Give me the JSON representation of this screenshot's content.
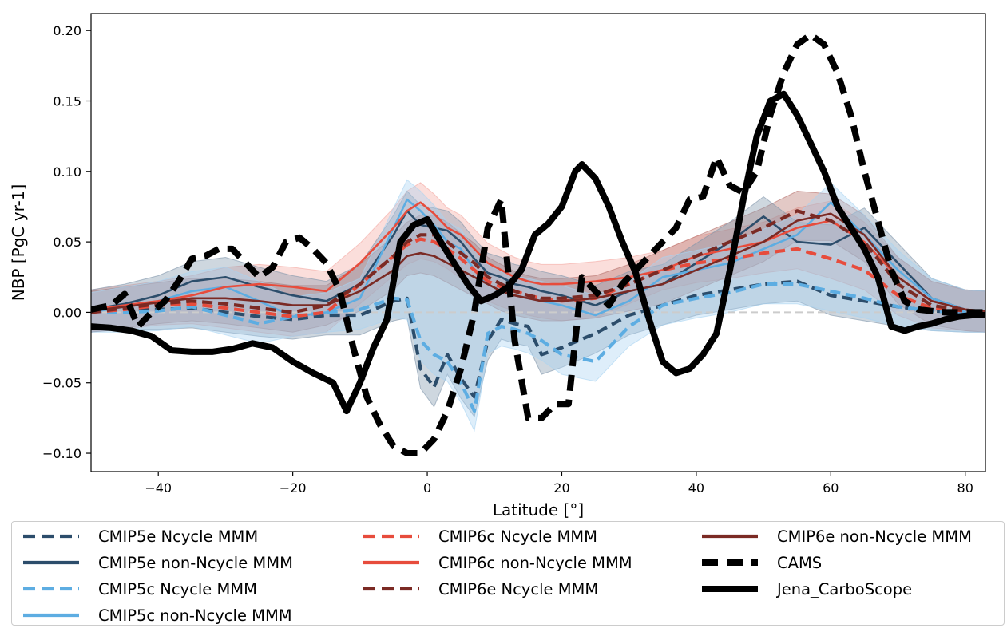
{
  "chart_data": {
    "type": "line",
    "title": "",
    "xlabel": "Latitude [°]",
    "ylabel": "NBP [PgC yr-1]",
    "xlim": [
      -50,
      83
    ],
    "ylim": [
      -0.113,
      0.212
    ],
    "xticks": [
      -40,
      -20,
      0,
      20,
      40,
      60,
      80
    ],
    "xtick_labels": [
      "−40",
      "−20",
      "0",
      "20",
      "40",
      "60",
      "80"
    ],
    "yticks": [
      -0.1,
      -0.05,
      0.0,
      0.05,
      0.1,
      0.15,
      0.2
    ],
    "ytick_labels": [
      "−0.10",
      "−0.05",
      "0.00",
      "0.05",
      "0.10",
      "0.15",
      "0.20"
    ],
    "grid": false,
    "zero_line": true,
    "legend_position": "bottom",
    "series": [
      {
        "name": "CMIP5e Ncycle MMM",
        "color": "#2c4d6b",
        "style": "dashed",
        "width": "medium",
        "x": [
          -50,
          -45,
          -40,
          -35,
          -30,
          -25,
          -20,
          -15,
          -10,
          -5,
          -3,
          -1,
          1,
          3,
          5,
          7,
          9,
          11,
          13,
          15,
          17,
          20,
          25,
          30,
          35,
          40,
          45,
          50,
          55,
          60,
          65,
          70,
          75,
          80,
          83
        ],
        "y": [
          0.0,
          0.002,
          0.002,
          0.003,
          0.0,
          -0.003,
          -0.005,
          -0.002,
          -0.002,
          0.008,
          0.01,
          -0.04,
          -0.053,
          -0.03,
          -0.047,
          -0.06,
          -0.02,
          -0.005,
          -0.008,
          -0.01,
          -0.03,
          -0.025,
          -0.015,
          -0.002,
          0.005,
          0.012,
          0.016,
          0.02,
          0.022,
          0.012,
          0.008,
          0.004,
          0.001,
          0.0,
          0.0
        ]
      },
      {
        "name": "CMIP5e non-Ncycle MMM",
        "color": "#2c4d6b",
        "style": "solid",
        "width": "thin",
        "x": [
          -50,
          -45,
          -40,
          -35,
          -30,
          -25,
          -20,
          -15,
          -10,
          -5,
          -3,
          -1,
          1,
          3,
          5,
          7,
          9,
          11,
          13,
          15,
          17,
          20,
          25,
          30,
          35,
          40,
          45,
          50,
          55,
          60,
          65,
          70,
          75,
          80,
          83
        ],
        "y": [
          0.002,
          0.006,
          0.012,
          0.022,
          0.025,
          0.018,
          0.012,
          0.008,
          0.02,
          0.055,
          0.072,
          0.062,
          0.06,
          0.058,
          0.05,
          0.038,
          0.028,
          0.025,
          0.02,
          0.018,
          0.015,
          0.012,
          0.005,
          0.015,
          0.02,
          0.035,
          0.05,
          0.068,
          0.05,
          0.048,
          0.06,
          0.035,
          0.01,
          0.002,
          0.001
        ]
      },
      {
        "name": "CMIP5c Ncycle MMM",
        "color": "#5dade2",
        "style": "dashed",
        "width": "medium",
        "x": [
          -50,
          -45,
          -40,
          -35,
          -30,
          -25,
          -20,
          -15,
          -10,
          -5,
          -3,
          -1,
          1,
          3,
          5,
          7,
          9,
          11,
          13,
          15,
          17,
          20,
          25,
          30,
          35,
          40,
          45,
          50,
          55,
          60,
          65,
          70,
          75,
          80,
          83
        ],
        "y": [
          0.0,
          0.0,
          0.001,
          0.004,
          -0.002,
          -0.008,
          -0.003,
          0.0,
          0.002,
          0.01,
          0.009,
          -0.02,
          -0.03,
          -0.035,
          -0.05,
          -0.07,
          -0.015,
          -0.01,
          -0.012,
          -0.015,
          -0.02,
          -0.03,
          -0.035,
          -0.01,
          0.005,
          0.01,
          0.014,
          0.02,
          0.02,
          0.015,
          0.01,
          0.004,
          0.001,
          0.0,
          0.0
        ]
      },
      {
        "name": "CMIP5c non-Ncycle MMM",
        "color": "#5dade2",
        "style": "solid",
        "width": "thin",
        "x": [
          -50,
          -45,
          -40,
          -35,
          -30,
          -25,
          -20,
          -15,
          -10,
          -5,
          -3,
          -1,
          1,
          3,
          5,
          7,
          9,
          11,
          13,
          15,
          17,
          20,
          25,
          30,
          35,
          40,
          45,
          50,
          55,
          60,
          65,
          70,
          75,
          80,
          83
        ],
        "y": [
          0.0,
          0.004,
          0.008,
          0.015,
          0.018,
          0.008,
          -0.003,
          0.0,
          0.01,
          0.06,
          0.08,
          0.072,
          0.062,
          0.05,
          0.045,
          0.03,
          0.02,
          0.015,
          0.012,
          0.01,
          0.008,
          0.005,
          -0.002,
          0.008,
          0.025,
          0.03,
          0.035,
          0.045,
          0.055,
          0.078,
          0.055,
          0.03,
          0.01,
          0.002,
          0.001
        ]
      },
      {
        "name": "CMIP6c Ncycle MMM",
        "color": "#e74c3c",
        "style": "dashed",
        "width": "medium",
        "x": [
          -50,
          -45,
          -40,
          -35,
          -30,
          -25,
          -20,
          -15,
          -10,
          -5,
          -3,
          -1,
          1,
          3,
          5,
          7,
          9,
          11,
          13,
          15,
          17,
          20,
          25,
          30,
          35,
          40,
          45,
          50,
          55,
          60,
          65,
          70,
          75,
          80,
          83
        ],
        "y": [
          0.0,
          0.002,
          0.005,
          0.006,
          0.003,
          0.0,
          -0.003,
          0.0,
          0.02,
          0.04,
          0.048,
          0.052,
          0.05,
          0.045,
          0.038,
          0.03,
          0.022,
          0.018,
          0.015,
          0.012,
          0.01,
          0.008,
          0.01,
          0.02,
          0.03,
          0.035,
          0.038,
          0.042,
          0.045,
          0.038,
          0.03,
          0.012,
          0.003,
          0.001,
          0.0
        ]
      },
      {
        "name": "CMIP6c non-Ncycle MMM",
        "color": "#e74c3c",
        "style": "solid",
        "width": "thin",
        "x": [
          -50,
          -45,
          -40,
          -35,
          -30,
          -25,
          -20,
          -15,
          -10,
          -5,
          -3,
          -1,
          1,
          3,
          5,
          7,
          9,
          11,
          13,
          15,
          17,
          20,
          25,
          30,
          35,
          40,
          45,
          50,
          55,
          60,
          65,
          70,
          75,
          80,
          83
        ],
        "y": [
          0.002,
          0.005,
          0.008,
          0.012,
          0.018,
          0.02,
          0.018,
          0.015,
          0.035,
          0.06,
          0.072,
          0.078,
          0.07,
          0.06,
          0.055,
          0.045,
          0.035,
          0.03,
          0.025,
          0.022,
          0.02,
          0.02,
          0.022,
          0.025,
          0.03,
          0.04,
          0.045,
          0.05,
          0.06,
          0.065,
          0.05,
          0.025,
          0.008,
          0.002,
          0.001
        ]
      },
      {
        "name": "CMIP6e Ncycle MMM",
        "color": "#7b2a24",
        "style": "dashed",
        "width": "medium",
        "x": [
          -50,
          -45,
          -40,
          -35,
          -30,
          -25,
          -20,
          -15,
          -10,
          -5,
          -3,
          -1,
          1,
          3,
          5,
          7,
          9,
          11,
          13,
          15,
          17,
          20,
          25,
          30,
          35,
          40,
          45,
          50,
          55,
          60,
          65,
          70,
          75,
          80,
          83
        ],
        "y": [
          0.0,
          0.003,
          0.006,
          0.008,
          0.006,
          0.003,
          0.0,
          0.005,
          0.02,
          0.04,
          0.05,
          0.055,
          0.055,
          0.05,
          0.042,
          0.035,
          0.025,
          0.02,
          0.015,
          0.012,
          0.01,
          0.01,
          0.012,
          0.02,
          0.03,
          0.04,
          0.05,
          0.06,
          0.072,
          0.065,
          0.05,
          0.02,
          0.005,
          0.001,
          0.0
        ]
      },
      {
        "name": "CMIP6e non-Ncycle MMM",
        "color": "#7b2a24",
        "style": "solid",
        "width": "thin",
        "x": [
          -50,
          -45,
          -40,
          -35,
          -30,
          -25,
          -20,
          -15,
          -10,
          -5,
          -3,
          -1,
          1,
          3,
          5,
          7,
          9,
          11,
          13,
          15,
          17,
          20,
          25,
          30,
          35,
          40,
          45,
          50,
          55,
          60,
          65,
          70,
          75,
          80,
          83
        ],
        "y": [
          0.001,
          0.004,
          0.007,
          0.01,
          0.01,
          0.008,
          0.005,
          0.005,
          0.015,
          0.03,
          0.04,
          0.042,
          0.04,
          0.035,
          0.03,
          0.025,
          0.02,
          0.015,
          0.012,
          0.01,
          0.008,
          0.008,
          0.01,
          0.015,
          0.02,
          0.03,
          0.04,
          0.05,
          0.065,
          0.07,
          0.055,
          0.025,
          0.008,
          0.002,
          0.001
        ]
      },
      {
        "name": "CAMS",
        "color": "#000000",
        "style": "dashed",
        "width": "thick",
        "x": [
          -50,
          -47,
          -45,
          -43,
          -41,
          -39,
          -37,
          -35,
          -33,
          -31,
          -29,
          -27,
          -25,
          -23,
          -21,
          -19,
          -17,
          -15,
          -13,
          -11,
          -9,
          -7,
          -5,
          -3,
          -1,
          1,
          3,
          5,
          7,
          9,
          11,
          13,
          15,
          17,
          19,
          21,
          23,
          25,
          27,
          29,
          31,
          33,
          35,
          37,
          39,
          41,
          43,
          45,
          47,
          49,
          51,
          53,
          55,
          57,
          59,
          61,
          63,
          65,
          67,
          69,
          71,
          73,
          75,
          77,
          79,
          81,
          83
        ],
        "y": [
          0.002,
          0.005,
          0.013,
          -0.01,
          0.0,
          0.008,
          0.022,
          0.038,
          0.04,
          0.045,
          0.045,
          0.035,
          0.025,
          0.032,
          0.05,
          0.053,
          0.045,
          0.035,
          0.015,
          -0.025,
          -0.06,
          -0.08,
          -0.095,
          -0.1,
          -0.1,
          -0.09,
          -0.07,
          -0.04,
          0.0,
          0.06,
          0.08,
          -0.02,
          -0.075,
          -0.075,
          -0.065,
          -0.065,
          0.025,
          0.015,
          0.005,
          0.02,
          0.03,
          0.04,
          0.05,
          0.06,
          0.08,
          0.082,
          0.11,
          0.09,
          0.085,
          0.1,
          0.14,
          0.17,
          0.19,
          0.197,
          0.19,
          0.17,
          0.14,
          0.1,
          0.065,
          0.03,
          0.008,
          0.002,
          0.001,
          0.0,
          0.0,
          0.0,
          0.0
        ]
      },
      {
        "name": "Jena_CarboScope",
        "color": "#000000",
        "style": "solid",
        "width": "thick",
        "x": [
          -50,
          -47,
          -44,
          -41,
          -38,
          -35,
          -32,
          -29,
          -26,
          -23,
          -20,
          -17,
          -14,
          -12,
          -10,
          -8,
          -6,
          -4,
          -2,
          0,
          2,
          4,
          6,
          8,
          10,
          12,
          14,
          16,
          18,
          20,
          22,
          23,
          25,
          27,
          29,
          31,
          33,
          35,
          37,
          39,
          41,
          43,
          45,
          47,
          49,
          51,
          53,
          55,
          57,
          59,
          61,
          63,
          65,
          67,
          69,
          71,
          73,
          75,
          77,
          79,
          81,
          83
        ],
        "y": [
          -0.01,
          -0.011,
          -0.013,
          -0.017,
          -0.027,
          -0.028,
          -0.028,
          -0.026,
          -0.022,
          -0.025,
          -0.035,
          -0.043,
          -0.05,
          -0.07,
          -0.05,
          -0.025,
          -0.005,
          0.05,
          0.062,
          0.066,
          0.05,
          0.035,
          0.02,
          0.008,
          0.012,
          0.018,
          0.03,
          0.055,
          0.063,
          0.075,
          0.1,
          0.105,
          0.095,
          0.075,
          0.05,
          0.028,
          -0.005,
          -0.035,
          -0.043,
          -0.04,
          -0.03,
          -0.015,
          0.03,
          0.08,
          0.125,
          0.15,
          0.155,
          0.14,
          0.12,
          0.1,
          0.075,
          0.06,
          0.045,
          0.025,
          -0.01,
          -0.013,
          -0.01,
          -0.008,
          -0.005,
          -0.003,
          -0.002,
          -0.002
        ]
      }
    ],
    "bands": [
      {
        "series": "CMIP6c",
        "color": "#f4a7a0"
      },
      {
        "series": "CMIP6e",
        "color": "#b5706a"
      },
      {
        "series": "CMIP5e",
        "color": "#7f95aa"
      },
      {
        "series": "CMIP5c",
        "color": "#a8d3f2"
      }
    ]
  },
  "legend": [
    {
      "label": "CMIP5e Ncycle MMM",
      "color": "#2c4d6b",
      "style": "dashed",
      "width": "medium"
    },
    {
      "label": "CMIP5e non-Ncycle MMM",
      "color": "#2c4d6b",
      "style": "solid",
      "width": "medium"
    },
    {
      "label": "CMIP5c Ncycle MMM",
      "color": "#5dade2",
      "style": "dashed",
      "width": "medium"
    },
    {
      "label": "CMIP5c non-Ncycle MMM",
      "color": "#5dade2",
      "style": "solid",
      "width": "medium"
    },
    {
      "label": "CMIP6c Ncycle MMM",
      "color": "#e74c3c",
      "style": "dashed",
      "width": "medium"
    },
    {
      "label": "CMIP6c non-Ncycle MMM",
      "color": "#e74c3c",
      "style": "solid",
      "width": "medium"
    },
    {
      "label": "CMIP6e Ncycle MMM",
      "color": "#7b2a24",
      "style": "dashed",
      "width": "medium"
    },
    {
      "label": "CMIP6e non-Ncycle MMM",
      "color": "#7b2a24",
      "style": "solid",
      "width": "medium"
    },
    {
      "label": "CAMS",
      "color": "#000000",
      "style": "dashed",
      "width": "thick"
    },
    {
      "label": "Jena_CarboScope",
      "color": "#000000",
      "style": "solid",
      "width": "thick"
    }
  ]
}
